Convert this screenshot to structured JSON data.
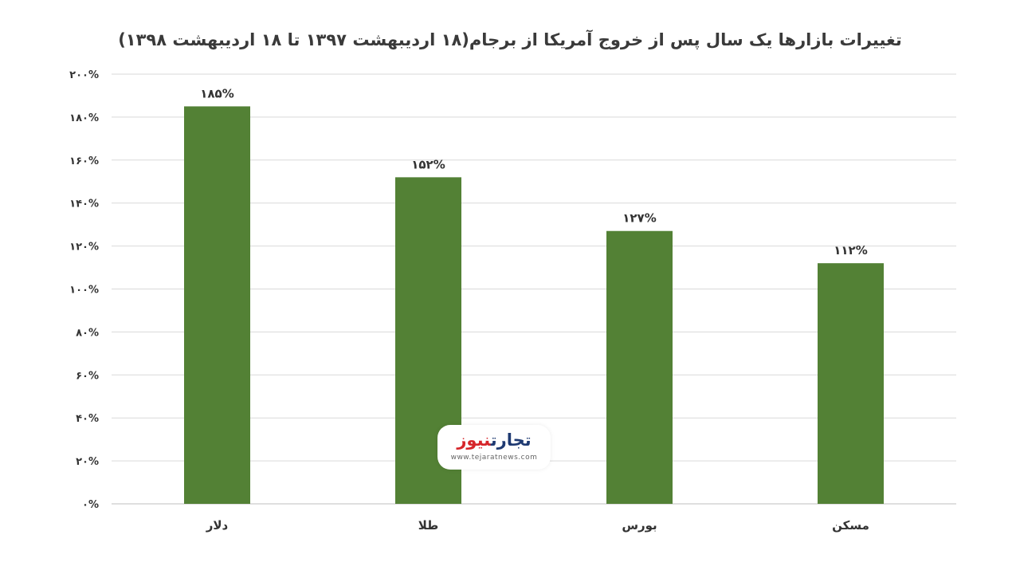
{
  "chart_data": {
    "type": "bar",
    "title": "تغییرات بازارها یک سال پس از خروج آمریکا از برجام(۱۸ اردیبهشت ۱۳۹۷ تا ۱۸ اردیبهشت ۱۳۹۸)",
    "categories": [
      "دلار",
      "طلا",
      "بورس",
      "مسکن"
    ],
    "values": [
      185,
      152,
      127,
      112
    ],
    "data_labels": [
      "۱۸۵%",
      "۱۵۲%",
      "۱۲۷%",
      "۱۱۲%"
    ],
    "ylim": [
      0,
      200
    ],
    "yticks": [
      0,
      20,
      40,
      60,
      80,
      100,
      120,
      140,
      160,
      180,
      200
    ],
    "ytick_labels": [
      "۰%",
      "۲۰%",
      "۴۰%",
      "۶۰%",
      "۸۰%",
      "۱۰۰%",
      "۱۲۰%",
      "۱۴۰%",
      "۱۶۰%",
      "۱۸۰%",
      "۲۰۰%"
    ],
    "grid": true,
    "legend": "none",
    "bar_color": "#538135",
    "xlabel": "",
    "ylabel": ""
  },
  "watermark": {
    "logo_part1": "تجارت",
    "logo_part2": "نیوز",
    "url": "www.tejaratnews.com"
  }
}
